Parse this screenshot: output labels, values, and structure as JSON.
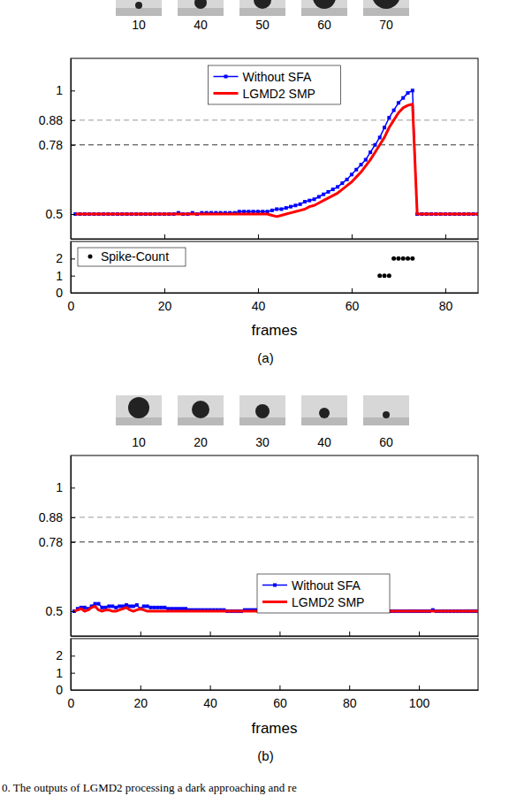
{
  "chart_data": [
    {
      "type": "line",
      "caption": "(a)",
      "thumbnail_frames": [
        10,
        40,
        50,
        60,
        70
      ],
      "x_label": "frames",
      "xlim": [
        0,
        87
      ],
      "xticks": [
        0,
        20,
        40,
        60,
        80
      ],
      "ylim": [
        0.4,
        1.13
      ],
      "yticks": [
        0.5,
        0.78,
        0.88,
        1
      ],
      "legend": "top",
      "reference_lines": [
        {
          "value": 0.88,
          "color": "#9a9a9a",
          "line_style": "dashed"
        },
        {
          "value": 0.78,
          "color": "#333333",
          "line_style": "dashed"
        }
      ],
      "x": [
        1,
        2,
        3,
        4,
        5,
        6,
        7,
        8,
        9,
        10,
        11,
        12,
        13,
        14,
        15,
        16,
        17,
        18,
        19,
        20,
        21,
        22,
        23,
        24,
        25,
        26,
        27,
        28,
        29,
        30,
        31,
        32,
        33,
        34,
        35,
        36,
        37,
        38,
        39,
        40,
        41,
        42,
        43,
        44,
        45,
        46,
        47,
        48,
        49,
        50,
        51,
        52,
        53,
        54,
        55,
        56,
        57,
        58,
        59,
        60,
        61,
        62,
        63,
        64,
        65,
        66,
        67,
        68,
        69,
        70,
        71,
        72,
        73,
        74,
        75,
        76,
        77,
        78,
        79,
        80,
        81,
        82,
        83,
        84,
        85,
        86,
        87
      ],
      "series": [
        {
          "name": "Without SFA",
          "color": "#0000ff",
          "marker": "square",
          "values": [
            0.5,
            0.5,
            0.5,
            0.5,
            0.5,
            0.5,
            0.5,
            0.5,
            0.5,
            0.5,
            0.5,
            0.5,
            0.5,
            0.5,
            0.5,
            0.5,
            0.5,
            0.5,
            0.5,
            0.5,
            0.5,
            0.5,
            0.505,
            0.5,
            0.5,
            0.505,
            0.5,
            0.505,
            0.505,
            0.505,
            0.505,
            0.505,
            0.505,
            0.505,
            0.505,
            0.51,
            0.51,
            0.51,
            0.51,
            0.51,
            0.51,
            0.51,
            0.515,
            0.52,
            0.52,
            0.525,
            0.53,
            0.535,
            0.54,
            0.55,
            0.555,
            0.56,
            0.57,
            0.58,
            0.59,
            0.6,
            0.61,
            0.625,
            0.64,
            0.66,
            0.68,
            0.7,
            0.72,
            0.75,
            0.78,
            0.81,
            0.85,
            0.89,
            0.92,
            0.95,
            0.97,
            0.99,
            1,
            0.5,
            0.5,
            0.5,
            0.5,
            0.5,
            0.5,
            0.5,
            0.5,
            0.5,
            0.5,
            0.5,
            0.5,
            0.5,
            0.5
          ]
        },
        {
          "name": "LGMD2 SMP",
          "color": "#ff0000",
          "values": [
            0.5,
            0.5,
            0.5,
            0.5,
            0.5,
            0.5,
            0.5,
            0.5,
            0.5,
            0.5,
            0.5,
            0.5,
            0.5,
            0.5,
            0.5,
            0.5,
            0.5,
            0.5,
            0.5,
            0.5,
            0.5,
            0.5,
            0.5,
            0.5,
            0.5,
            0.5,
            0.5,
            0.5,
            0.5,
            0.5,
            0.5,
            0.5,
            0.5,
            0.5,
            0.5,
            0.5,
            0.5,
            0.5,
            0.5,
            0.5,
            0.5,
            0.5,
            0.495,
            0.49,
            0.495,
            0.5,
            0.505,
            0.51,
            0.515,
            0.52,
            0.53,
            0.535,
            0.545,
            0.555,
            0.565,
            0.575,
            0.585,
            0.6,
            0.615,
            0.63,
            0.65,
            0.67,
            0.695,
            0.72,
            0.75,
            0.78,
            0.81,
            0.85,
            0.88,
            0.91,
            0.93,
            0.94,
            0.945,
            0.5,
            0.5,
            0.5,
            0.5,
            0.5,
            0.5,
            0.5,
            0.5,
            0.5,
            0.5,
            0.5,
            0.5,
            0.5,
            0.5
          ]
        }
      ],
      "spike_count": {
        "type": "scatter",
        "ylim": [
          0,
          3
        ],
        "yticks": [
          0,
          1,
          2
        ],
        "legend": "upper left",
        "series": [
          {
            "name": "Spike-Count",
            "color": "#000000",
            "marker": "circle",
            "x": [
              66,
              67,
              68,
              69,
              70,
              71,
              72,
              73
            ],
            "values": [
              1,
              1,
              1,
              2,
              2,
              2,
              2,
              2
            ]
          }
        ]
      }
    },
    {
      "type": "line",
      "caption": "(b)",
      "thumbnail_frames": [
        10,
        20,
        30,
        40,
        60
      ],
      "x_label": "frames",
      "xlim": [
        0,
        117
      ],
      "xticks": [
        0,
        20,
        40,
        60,
        80,
        100
      ],
      "ylim": [
        0.4,
        1.13
      ],
      "yticks": [
        0.5,
        0.78,
        0.88,
        1
      ],
      "legend": "lower right",
      "reference_lines": [
        {
          "value": 0.88,
          "color": "#9a9a9a",
          "line_style": "dashed"
        },
        {
          "value": 0.78,
          "color": "#333333",
          "line_style": "dashed"
        }
      ],
      "x": [
        1,
        2,
        3,
        4,
        5,
        6,
        7,
        8,
        9,
        10,
        11,
        12,
        13,
        14,
        15,
        16,
        17,
        18,
        19,
        20,
        21,
        22,
        23,
        24,
        25,
        26,
        27,
        28,
        29,
        30,
        31,
        32,
        33,
        34,
        35,
        36,
        37,
        38,
        39,
        40,
        41,
        42,
        43,
        44,
        45,
        46,
        47,
        48,
        49,
        50,
        51,
        52,
        53,
        54,
        55,
        56,
        57,
        58,
        59,
        60,
        61,
        62,
        63,
        64,
        65,
        66,
        67,
        68,
        69,
        70,
        71,
        72,
        73,
        74,
        75,
        76,
        77,
        78,
        79,
        80,
        81,
        82,
        83,
        84,
        85,
        86,
        87,
        88,
        89,
        90,
        91,
        92,
        93,
        94,
        95,
        96,
        97,
        98,
        99,
        100,
        101,
        102,
        103,
        104,
        105,
        106,
        107,
        108,
        109,
        110,
        111,
        112,
        113,
        114,
        115,
        116,
        117
      ],
      "series": [
        {
          "name": "Without SFA",
          "color": "#0000ff",
          "marker": "square",
          "values": [
            0.5,
            0.51,
            0.515,
            0.515,
            0.51,
            0.52,
            0.53,
            0.53,
            0.515,
            0.515,
            0.52,
            0.52,
            0.515,
            0.52,
            0.52,
            0.525,
            0.52,
            0.52,
            0.525,
            0.51,
            0.52,
            0.52,
            0.515,
            0.515,
            0.515,
            0.515,
            0.515,
            0.51,
            0.51,
            0.51,
            0.51,
            0.51,
            0.51,
            0.505,
            0.505,
            0.505,
            0.505,
            0.505,
            0.505,
            0.505,
            0.505,
            0.505,
            0.505,
            0.505,
            0.5,
            0.5,
            0.5,
            0.5,
            0.5,
            0.505,
            0.505,
            0.505,
            0.505,
            0.505,
            0.5,
            0.5,
            0.5,
            0.5,
            0.5,
            0.5,
            0.5,
            0.5,
            0.5,
            0.5,
            0.5,
            0.5,
            0.5,
            0.5,
            0.5,
            0.5,
            0.5,
            0.5,
            0.5,
            0.5,
            0.5,
            0.5,
            0.5,
            0.5,
            0.5,
            0.5,
            0.5,
            0.5,
            0.5,
            0.5,
            0.5,
            0.5,
            0.5,
            0.5,
            0.5,
            0.5,
            0.5,
            0.5,
            0.5,
            0.5,
            0.5,
            0.5,
            0.5,
            0.5,
            0.5,
            0.5,
            0.5,
            0.5,
            0.5,
            0.505,
            0.5,
            0.5,
            0.5,
            0.5,
            0.5,
            0.5,
            0.5,
            0.5,
            0.5,
            0.5,
            0.5,
            0.5,
            0.5
          ]
        },
        {
          "name": "LGMD2 SMP",
          "color": "#ff0000",
          "values": [
            0.5,
            0.505,
            0.51,
            0.5,
            0.505,
            0.515,
            0.52,
            0.505,
            0.5,
            0.505,
            0.505,
            0.5,
            0.5,
            0.505,
            0.51,
            0.515,
            0.505,
            0.5,
            0.505,
            0.51,
            0.505,
            0.5,
            0.5,
            0.5,
            0.5,
            0.5,
            0.5,
            0.5,
            0.5,
            0.5,
            0.5,
            0.5,
            0.5,
            0.5,
            0.5,
            0.5,
            0.5,
            0.5,
            0.5,
            0.5,
            0.5,
            0.5,
            0.5,
            0.5,
            0.5,
            0.5,
            0.5,
            0.5,
            0.5,
            0.5,
            0.5,
            0.5,
            0.5,
            0.5,
            0.5,
            0.5,
            0.5,
            0.5,
            0.5,
            0.5,
            0.5,
            0.5,
            0.5,
            0.5,
            0.5,
            0.5,
            0.5,
            0.5,
            0.5,
            0.5,
            0.5,
            0.5,
            0.5,
            0.5,
            0.5,
            0.5,
            0.5,
            0.5,
            0.5,
            0.5,
            0.5,
            0.5,
            0.5,
            0.5,
            0.5,
            0.5,
            0.5,
            0.5,
            0.5,
            0.5,
            0.5,
            0.5,
            0.5,
            0.5,
            0.5,
            0.5,
            0.5,
            0.5,
            0.5,
            0.5,
            0.5,
            0.5,
            0.5,
            0.5,
            0.5,
            0.5,
            0.5,
            0.5,
            0.5,
            0.5,
            0.5,
            0.5,
            0.5,
            0.5,
            0.5,
            0.5,
            0.5
          ]
        }
      ],
      "spike_count": {
        "type": "scatter",
        "ylim": [
          0,
          3
        ],
        "yticks": [
          0,
          1,
          2
        ]
      }
    }
  ],
  "caption": "0. The outputs of LGMD2 processing a dark approaching and re"
}
